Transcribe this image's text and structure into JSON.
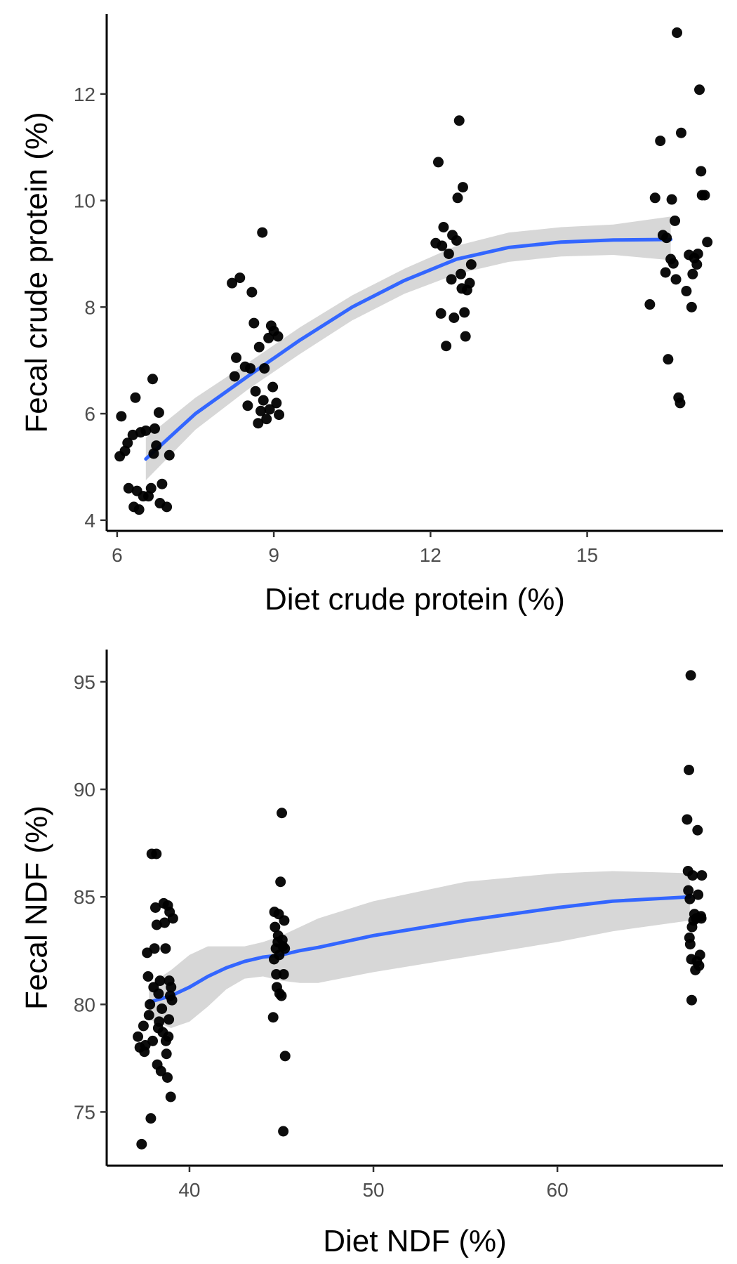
{
  "colors": {
    "points": "#000000",
    "fit_line": "#3366ff",
    "ribbon": "#bdbdbd",
    "tick_text": "#4d4d4d"
  },
  "chart_data": [
    {
      "type": "scatter",
      "xlabel": "Diet crude protein (%)",
      "ylabel": "Fecal crude protein (%)",
      "xlim": [
        5.8,
        17.6
      ],
      "ylim": [
        3.8,
        13.5
      ],
      "xticks": [
        6,
        9,
        12,
        15
      ],
      "yticks": [
        4,
        6,
        8,
        10,
        12
      ],
      "grid": false,
      "points": [
        [
          6.05,
          5.2
        ],
        [
          6.08,
          5.95
        ],
        [
          6.15,
          5.3
        ],
        [
          6.2,
          5.45
        ],
        [
          6.22,
          4.6
        ],
        [
          6.3,
          5.6
        ],
        [
          6.32,
          4.25
        ],
        [
          6.35,
          6.3
        ],
        [
          6.38,
          4.55
        ],
        [
          6.42,
          4.2
        ],
        [
          6.45,
          5.65
        ],
        [
          6.5,
          4.45
        ],
        [
          6.55,
          5.68
        ],
        [
          6.6,
          4.45
        ],
        [
          6.65,
          4.6
        ],
        [
          6.68,
          6.65
        ],
        [
          6.7,
          5.25
        ],
        [
          6.72,
          5.72
        ],
        [
          6.75,
          5.4
        ],
        [
          6.8,
          6.02
        ],
        [
          6.82,
          4.32
        ],
        [
          6.86,
          4.68
        ],
        [
          6.95,
          4.25
        ],
        [
          7.0,
          5.22
        ],
        [
          8.2,
          8.45
        ],
        [
          8.25,
          6.7
        ],
        [
          8.28,
          7.05
        ],
        [
          8.35,
          8.55
        ],
        [
          8.45,
          6.88
        ],
        [
          8.5,
          6.15
        ],
        [
          8.55,
          6.85
        ],
        [
          8.58,
          8.28
        ],
        [
          8.62,
          7.7
        ],
        [
          8.65,
          6.42
        ],
        [
          8.7,
          5.82
        ],
        [
          8.72,
          7.25
        ],
        [
          8.75,
          6.05
        ],
        [
          8.78,
          9.4
        ],
        [
          8.8,
          6.25
        ],
        [
          8.82,
          6.85
        ],
        [
          8.86,
          5.9
        ],
        [
          8.9,
          7.42
        ],
        [
          8.92,
          6.08
        ],
        [
          8.95,
          7.65
        ],
        [
          8.98,
          6.5
        ],
        [
          9.0,
          7.55
        ],
        [
          9.05,
          6.2
        ],
        [
          9.08,
          7.45
        ],
        [
          9.1,
          5.98
        ],
        [
          12.1,
          9.2
        ],
        [
          12.15,
          10.72
        ],
        [
          12.2,
          7.88
        ],
        [
          12.22,
          9.15
        ],
        [
          12.25,
          9.5
        ],
        [
          12.3,
          7.27
        ],
        [
          12.35,
          9.0
        ],
        [
          12.4,
          8.52
        ],
        [
          12.42,
          9.35
        ],
        [
          12.45,
          7.8
        ],
        [
          12.5,
          9.25
        ],
        [
          12.52,
          10.05
        ],
        [
          12.55,
          11.5
        ],
        [
          12.58,
          8.62
        ],
        [
          12.6,
          8.35
        ],
        [
          12.62,
          10.25
        ],
        [
          12.65,
          7.9
        ],
        [
          12.67,
          7.45
        ],
        [
          12.7,
          8.32
        ],
        [
          12.75,
          8.45
        ],
        [
          12.78,
          8.8
        ],
        [
          16.2,
          8.05
        ],
        [
          16.3,
          10.05
        ],
        [
          16.4,
          11.12
        ],
        [
          16.45,
          9.35
        ],
        [
          16.5,
          8.65
        ],
        [
          16.52,
          9.3
        ],
        [
          16.55,
          7.02
        ],
        [
          16.6,
          8.9
        ],
        [
          16.62,
          10.02
        ],
        [
          16.65,
          8.82
        ],
        [
          16.68,
          9.62
        ],
        [
          16.7,
          8.52
        ],
        [
          16.72,
          13.15
        ],
        [
          16.75,
          6.3
        ],
        [
          16.78,
          6.2
        ],
        [
          16.8,
          11.27
        ],
        [
          16.9,
          8.3
        ],
        [
          16.95,
          8.98
        ],
        [
          17.0,
          8.0
        ],
        [
          17.02,
          8.62
        ],
        [
          17.05,
          8.92
        ],
        [
          17.1,
          8.8
        ],
        [
          17.12,
          9.0
        ],
        [
          17.15,
          12.08
        ],
        [
          17.18,
          10.55
        ],
        [
          17.2,
          10.1
        ],
        [
          17.25,
          10.1
        ],
        [
          17.3,
          9.22
        ]
      ],
      "fit": [
        [
          6.55,
          5.15
        ],
        [
          7.5,
          6.0
        ],
        [
          8.5,
          6.7
        ],
        [
          9.5,
          7.38
        ],
        [
          10.5,
          8.0
        ],
        [
          11.5,
          8.5
        ],
        [
          12.5,
          8.9
        ],
        [
          13.5,
          9.12
        ],
        [
          14.5,
          9.22
        ],
        [
          15.5,
          9.26
        ],
        [
          16.6,
          9.27
        ]
      ],
      "fit_ci_upper": [
        [
          6.55,
          5.55
        ],
        [
          7.5,
          6.3
        ],
        [
          8.5,
          6.95
        ],
        [
          9.5,
          7.62
        ],
        [
          10.5,
          8.22
        ],
        [
          11.5,
          8.72
        ],
        [
          12.5,
          9.15
        ],
        [
          13.5,
          9.4
        ],
        [
          14.5,
          9.5
        ],
        [
          15.5,
          9.55
        ],
        [
          16.6,
          9.7
        ]
      ],
      "fit_ci_lower": [
        [
          6.55,
          4.75
        ],
        [
          7.5,
          5.7
        ],
        [
          8.5,
          6.45
        ],
        [
          9.5,
          7.12
        ],
        [
          10.5,
          7.75
        ],
        [
          11.5,
          8.25
        ],
        [
          12.5,
          8.62
        ],
        [
          13.5,
          8.85
        ],
        [
          14.5,
          8.95
        ],
        [
          15.5,
          8.98
        ],
        [
          16.6,
          8.88
        ]
      ]
    },
    {
      "type": "scatter",
      "xlabel": "Diet NDF (%)",
      "ylabel": "Fecal NDF (%)",
      "xlim": [
        35.5,
        69.0
      ],
      "ylim": [
        72.5,
        96.5
      ],
      "xticks": [
        40,
        50,
        60
      ],
      "yticks": [
        75,
        80,
        85,
        90,
        95
      ],
      "grid": false,
      "points": [
        [
          37.2,
          78.5
        ],
        [
          37.3,
          78.0
        ],
        [
          37.4,
          73.5
        ],
        [
          37.5,
          79.0
        ],
        [
          37.55,
          77.8
        ],
        [
          37.6,
          78.1
        ],
        [
          37.7,
          82.4
        ],
        [
          37.75,
          81.3
        ],
        [
          37.8,
          79.5
        ],
        [
          37.85,
          80.0
        ],
        [
          37.9,
          74.7
        ],
        [
          37.95,
          87.0
        ],
        [
          38.0,
          78.3
        ],
        [
          38.05,
          80.8
        ],
        [
          38.1,
          82.6
        ],
        [
          38.15,
          84.5
        ],
        [
          38.2,
          87.0
        ],
        [
          38.22,
          83.7
        ],
        [
          38.25,
          77.2
        ],
        [
          38.3,
          78.9
        ],
        [
          38.32,
          80.5
        ],
        [
          38.35,
          79.2
        ],
        [
          38.4,
          81.1
        ],
        [
          38.45,
          76.9
        ],
        [
          38.5,
          79.8
        ],
        [
          38.55,
          78.7
        ],
        [
          38.6,
          84.7
        ],
        [
          38.65,
          83.8
        ],
        [
          38.7,
          82.6
        ],
        [
          38.72,
          78.3
        ],
        [
          38.75,
          77.7
        ],
        [
          38.8,
          76.6
        ],
        [
          38.82,
          84.6
        ],
        [
          38.85,
          78.5
        ],
        [
          38.88,
          79.3
        ],
        [
          38.9,
          81.1
        ],
        [
          38.92,
          84.3
        ],
        [
          38.95,
          80.4
        ],
        [
          38.98,
          75.7
        ],
        [
          39.0,
          80.8
        ],
        [
          39.05,
          80.2
        ],
        [
          39.1,
          84.0
        ],
        [
          44.55,
          79.4
        ],
        [
          44.6,
          82.1
        ],
        [
          44.62,
          84.3
        ],
        [
          44.65,
          83.6
        ],
        [
          44.7,
          82.6
        ],
        [
          44.72,
          81.4
        ],
        [
          44.75,
          80.8
        ],
        [
          44.8,
          82.9
        ],
        [
          44.82,
          83.2
        ],
        [
          44.85,
          84.2
        ],
        [
          44.88,
          82.3
        ],
        [
          44.9,
          80.5
        ],
        [
          44.95,
          85.7
        ],
        [
          45.0,
          80.4
        ],
        [
          45.02,
          88.9
        ],
        [
          45.05,
          83.0
        ],
        [
          45.08,
          82.7
        ],
        [
          45.1,
          74.1
        ],
        [
          45.12,
          81.4
        ],
        [
          45.15,
          83.9
        ],
        [
          45.18,
          82.6
        ],
        [
          45.2,
          77.6
        ],
        [
          67.05,
          88.6
        ],
        [
          67.1,
          86.2
        ],
        [
          67.12,
          85.3
        ],
        [
          67.15,
          90.9
        ],
        [
          67.18,
          83.1
        ],
        [
          67.2,
          84.9
        ],
        [
          67.22,
          82.8
        ],
        [
          67.25,
          95.3
        ],
        [
          67.28,
          82.1
        ],
        [
          67.3,
          80.2
        ],
        [
          67.32,
          83.6
        ],
        [
          67.35,
          86.0
        ],
        [
          67.4,
          83.9
        ],
        [
          67.45,
          84.2
        ],
        [
          67.5,
          81.6
        ],
        [
          67.55,
          84.0
        ],
        [
          67.58,
          82.0
        ],
        [
          67.62,
          88.1
        ],
        [
          67.65,
          85.1
        ],
        [
          67.7,
          81.8
        ],
        [
          67.75,
          82.3
        ],
        [
          67.8,
          84.1
        ],
        [
          67.82,
          84.0
        ],
        [
          67.85,
          86.0
        ]
      ],
      "fit": [
        [
          37.8,
          80.1
        ],
        [
          39.0,
          80.4
        ],
        [
          40.0,
          80.8
        ],
        [
          41.0,
          81.3
        ],
        [
          42.0,
          81.7
        ],
        [
          43.0,
          82.0
        ],
        [
          44.0,
          82.2
        ],
        [
          45.0,
          82.3
        ],
        [
          46.0,
          82.5
        ],
        [
          47.0,
          82.65
        ],
        [
          50.0,
          83.2
        ],
        [
          55.0,
          83.9
        ],
        [
          60.0,
          84.5
        ],
        [
          63.0,
          84.8
        ],
        [
          67.2,
          85.0
        ]
      ],
      "fit_ci_upper": [
        [
          37.8,
          80.9
        ],
        [
          39.0,
          81.6
        ],
        [
          40.0,
          82.3
        ],
        [
          41.0,
          82.7
        ],
        [
          42.0,
          82.7
        ],
        [
          43.0,
          82.7
        ],
        [
          44.0,
          82.9
        ],
        [
          45.0,
          83.2
        ],
        [
          46.0,
          83.6
        ],
        [
          47.0,
          84.0
        ],
        [
          50.0,
          84.8
        ],
        [
          55.0,
          85.7
        ],
        [
          60.0,
          86.1
        ],
        [
          63.0,
          86.2
        ],
        [
          67.2,
          86.1
        ]
      ],
      "fit_ci_lower": [
        [
          37.8,
          79.3
        ],
        [
          39.0,
          78.9
        ],
        [
          40.0,
          79.2
        ],
        [
          41.0,
          79.9
        ],
        [
          42.0,
          80.7
        ],
        [
          43.0,
          81.2
        ],
        [
          44.0,
          81.3
        ],
        [
          45.0,
          81.1
        ],
        [
          46.0,
          81.0
        ],
        [
          47.0,
          81.0
        ],
        [
          50.0,
          81.5
        ],
        [
          55.0,
          82.2
        ],
        [
          60.0,
          82.9
        ],
        [
          63.0,
          83.4
        ],
        [
          67.2,
          83.9
        ]
      ]
    }
  ]
}
